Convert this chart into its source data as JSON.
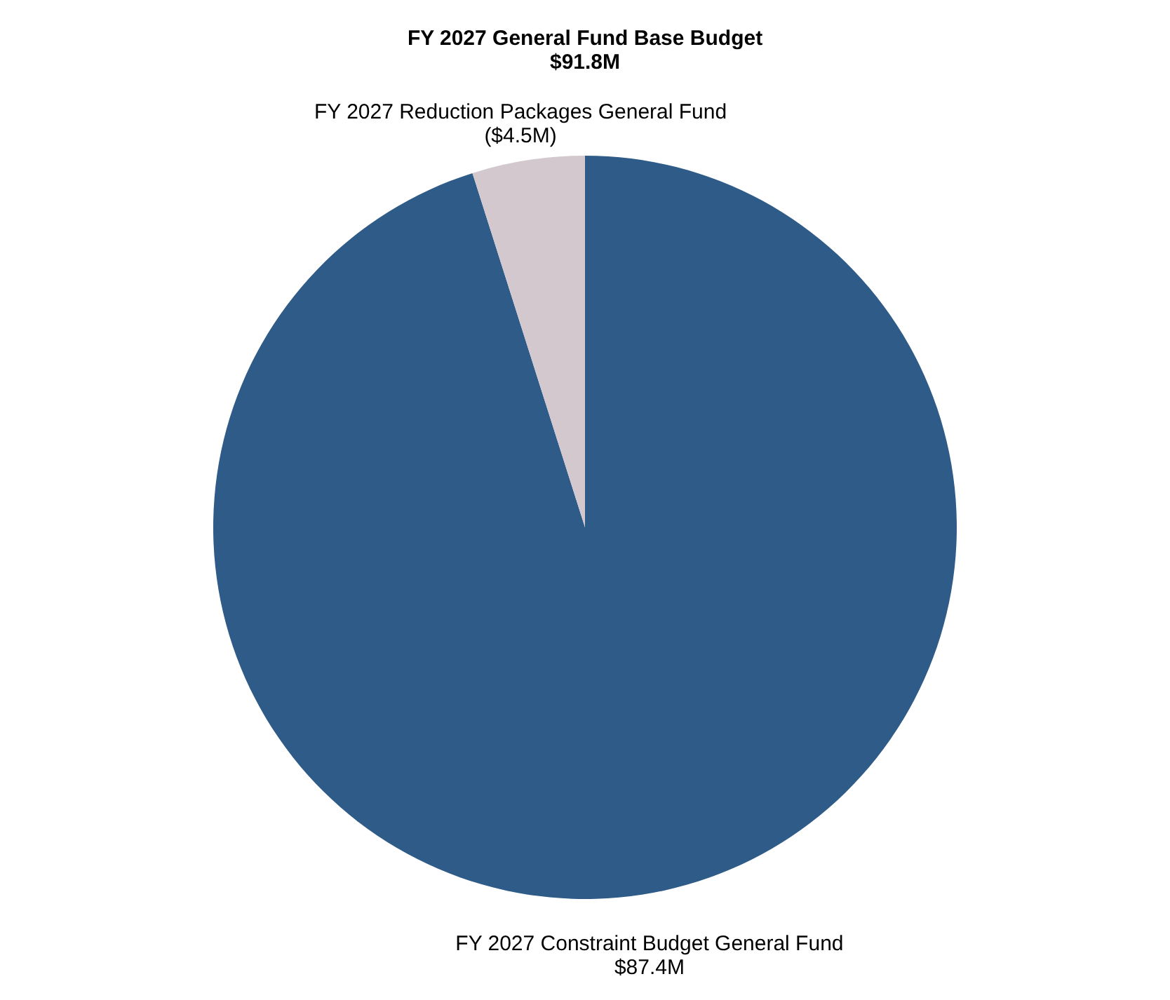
{
  "chart_data": {
    "type": "pie",
    "title": "FY 2027 General Fund Base Budget",
    "subtitle": "$91.8M",
    "categories": [
      "FY 2027 Constraint Budget General Fund",
      "FY 2027 Reduction Packages General Fund"
    ],
    "values": [
      87.4,
      4.5
    ],
    "value_labels": [
      "$87.4M",
      "($4.5M)"
    ],
    "colors": [
      "#2e5b88",
      "#d3c8ce"
    ]
  }
}
